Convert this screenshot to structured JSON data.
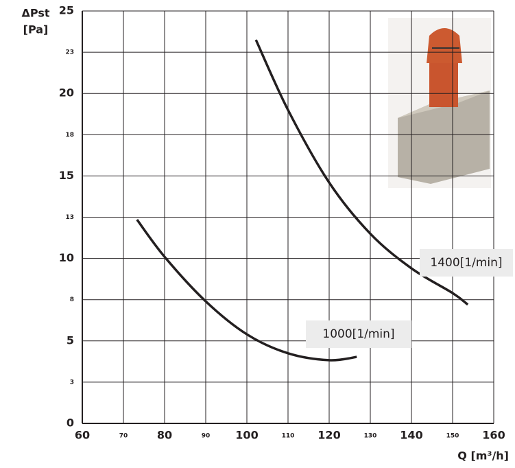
{
  "chart_data": {
    "type": "line",
    "y_label": [
      "ΔPst",
      "[Pa]"
    ],
    "x_label": "Q [m³/h]",
    "xlim": [
      60,
      160
    ],
    "ylim": [
      0,
      25
    ],
    "xticks": [
      60,
      70,
      80,
      90,
      100,
      110,
      120,
      130,
      140,
      150,
      160
    ],
    "yticks": [
      0,
      {
        "value": 2.5,
        "label": "3"
      },
      5,
      {
        "value": 7.5,
        "label": "8"
      },
      10,
      {
        "value": 12.5,
        "label": "13"
      },
      15,
      {
        "value": 17.5,
        "label": "18"
      },
      20,
      {
        "value": 22.5,
        "label": "23"
      },
      25
    ],
    "grid": true,
    "series": [
      {
        "name": "1400[1/min]",
        "color": "#231f20",
        "x": [
          102.2,
          110,
          120,
          130,
          140,
          150,
          153.7
        ],
        "values": [
          23.25,
          19.0,
          14.6,
          11.5,
          9.4,
          7.9,
          7.2
        ]
      },
      {
        "name": "1000[1/min]",
        "color": "#231f20",
        "x": [
          73.3,
          80,
          90,
          100,
          110,
          120,
          126.7
        ],
        "values": [
          12.35,
          10.1,
          7.4,
          5.4,
          4.25,
          3.83,
          4.03
        ]
      }
    ]
  }
}
